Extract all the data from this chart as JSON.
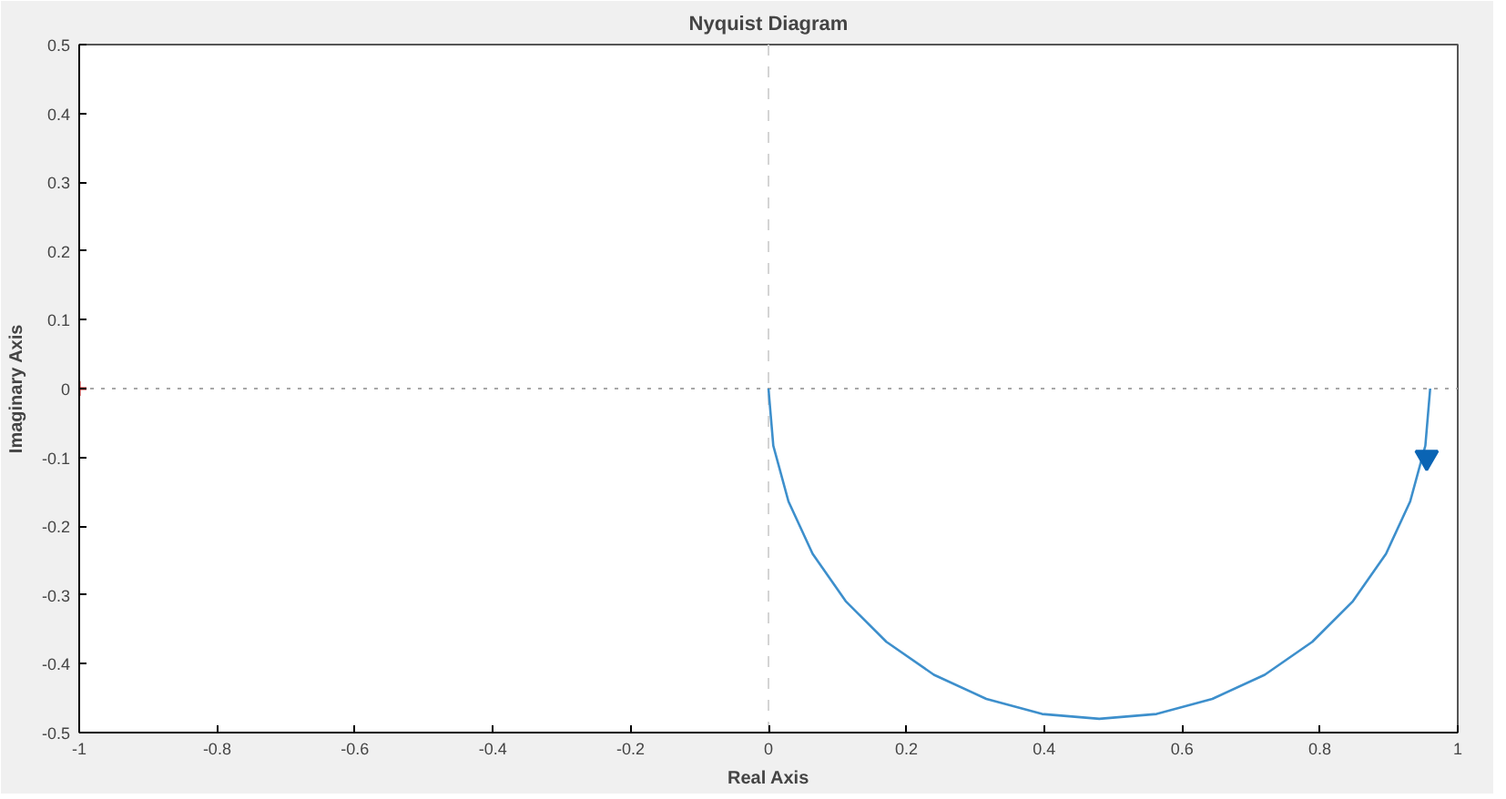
{
  "chart_data": {
    "type": "line",
    "title": "Nyquist Diagram",
    "xlabel": "Real Axis",
    "ylabel": "Imaginary Axis",
    "xlim": [
      -1,
      1
    ],
    "ylim": [
      -0.5,
      0.5
    ],
    "xticks": [
      -1,
      -0.8,
      -0.6,
      -0.4,
      -0.2,
      0,
      0.2,
      0.4,
      0.6,
      0.8,
      1
    ],
    "yticks": [
      -0.5,
      -0.4,
      -0.3,
      -0.2,
      -0.1,
      0,
      0.1,
      0.2,
      0.3,
      0.4,
      0.5
    ],
    "grid": false,
    "ref_lines": [
      {
        "axis": "x",
        "value": 0,
        "color": "#d4d4d4",
        "line_style": "dashed"
      },
      {
        "axis": "y",
        "value": 0,
        "color": "#a8a8a8",
        "line_style": "dotted"
      }
    ],
    "series": [
      {
        "color": "#3d8fcc",
        "line_style": "solid",
        "marker": "none",
        "x": [
          0,
          0.007,
          0.029,
          0.064,
          0.112,
          0.171,
          0.24,
          0.316,
          0.397,
          0.48,
          0.563,
          0.644,
          0.72,
          0.789,
          0.848,
          0.896,
          0.931,
          0.953,
          0.96
        ],
        "values": [
          0,
          -0.083,
          -0.164,
          -0.24,
          -0.309,
          -0.368,
          -0.416,
          -0.451,
          -0.473,
          -0.48,
          -0.473,
          -0.451,
          -0.416,
          -0.368,
          -0.309,
          -0.24,
          -0.164,
          -0.083,
          0
        ]
      },
      {
        "type": "scatter",
        "color": "#0a64b4",
        "marker": "triangle",
        "x": [
          0.955
        ],
        "values": [
          -0.1
        ]
      },
      {
        "type": "scatter",
        "color": "#e02020",
        "marker": "cross",
        "x": [
          -1
        ],
        "values": [
          0
        ]
      }
    ]
  }
}
